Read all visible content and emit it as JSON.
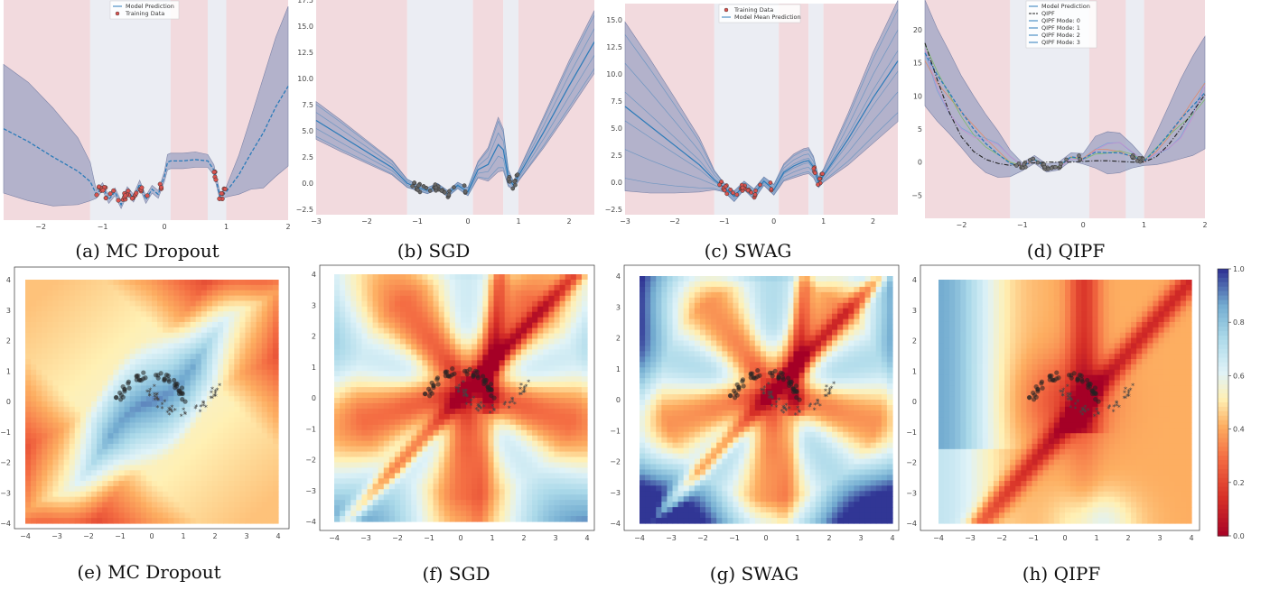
{
  "colors": {
    "ood_band": "#f2dade",
    "id_band": "#ebedf3",
    "uncertainty_fill": "#9ea4c4",
    "prediction_line": "#2b7bb9",
    "training_points": "#d9534f",
    "class0_points": "#222222",
    "class1_points": "#4a9a3a"
  },
  "top_row": [
    {
      "caption": "(a) MC Dropout",
      "x_ticks": [
        "−2",
        "−1",
        "0",
        "1",
        "2"
      ],
      "y_ticks": [],
      "legend": [
        "Model Prediction",
        "Training Data"
      ]
    },
    {
      "caption": "(b) SGD",
      "x_ticks": [
        "−3",
        "−2",
        "−1",
        "0",
        "1",
        "2"
      ],
      "y_ticks": [
        "17.5",
        "15.0",
        "12.5",
        "10.0",
        "7.5",
        "5.0",
        "2.5",
        "0.0",
        "−2.5"
      ],
      "legend": []
    },
    {
      "caption": "(c) SWAG",
      "x_ticks": [
        "−3",
        "−2",
        "−1",
        "0",
        "1",
        "2"
      ],
      "y_ticks": [
        "15.0",
        "12.5",
        "10.0",
        "7.5",
        "5.0",
        "2.5",
        "0.0",
        "−2.5"
      ],
      "legend": [
        "Training Data",
        "Model Mean Prediction"
      ]
    },
    {
      "caption": "(d) QIPF",
      "x_ticks": [
        "−2",
        "−1",
        "0",
        "1",
        "2"
      ],
      "y_ticks": [
        "20",
        "15",
        "10",
        "5",
        "0",
        "−5"
      ],
      "legend": [
        "Model Prediction",
        "QIPF",
        "QIPF Mode: 0",
        "QIPF Mode: 1",
        "QIPF Mode: 2",
        "QIPF Mode: 3"
      ]
    }
  ],
  "bottom_row": [
    {
      "caption": "(e) MC Dropout"
    },
    {
      "caption": "(f) SGD"
    },
    {
      "caption": "(g) SWAG"
    },
    {
      "caption": "(h) QIPF"
    }
  ],
  "grid_ticks": [
    "−4",
    "−3",
    "−2",
    "−1",
    "0",
    "1",
    "2",
    "3",
    "4"
  ],
  "colorbar": {
    "ticks": [
      "1.0",
      "0.8",
      "0.6",
      "0.4",
      "0.2",
      "0.0"
    ],
    "range": [
      0,
      1
    ],
    "colormap": "RdYlBu"
  },
  "chart_data": [
    {
      "type": "line",
      "panel": "a",
      "x_range": [
        -2.6,
        2
      ],
      "y_range": [
        -2.6,
        14.5
      ],
      "series": [
        {
          "name": "Model Prediction",
          "x": [
            -2.6,
            -2.2,
            -1.8,
            -1.4,
            -1.2,
            -1.1,
            -1.0,
            -0.9,
            -0.8,
            -0.7,
            -0.6,
            -0.5,
            -0.4,
            -0.3,
            -0.2,
            -0.1,
            0.0,
            0.05,
            0.1,
            0.3,
            0.5,
            0.7,
            0.8,
            0.9,
            0.95,
            1.0,
            1.2,
            1.4,
            1.6,
            1.8,
            2.0
          ],
          "y": [
            4.5,
            3.5,
            2.3,
            1.2,
            0.4,
            -0.6,
            0.0,
            -1.0,
            -0.4,
            -1.4,
            -0.3,
            -0.9,
            0.2,
            -1.0,
            -0.2,
            -0.6,
            0.8,
            1.9,
            2.0,
            2.0,
            2.1,
            2.0,
            1.3,
            -0.8,
            -0.6,
            -0.4,
            0.9,
            2.6,
            4.2,
            6.2,
            7.8
          ]
        },
        {
          "name": "Training Data",
          "x_range": [
            -1.15,
            1.0
          ]
        }
      ],
      "uncertainty_half_width": [
        5.0,
        4.6,
        3.8,
        2.6,
        1.5,
        0.3,
        0.3,
        0.3,
        0.3,
        0.3,
        0.3,
        0.3,
        0.3,
        0.3,
        0.3,
        0.3,
        0.4,
        0.6,
        0.6,
        0.6,
        0.6,
        0.5,
        0.4,
        0.3,
        0.3,
        0.4,
        1.5,
        2.8,
        4.3,
        5.4,
        6.2
      ]
    },
    {
      "type": "line",
      "panel": "b",
      "x_range": [
        -3,
        2.5
      ],
      "y_range": [
        -3,
        17.5
      ],
      "series": [
        {
          "name": "",
          "x": [
            -3,
            -2.5,
            -2,
            -1.5,
            -1.2,
            -1,
            -0.8,
            -0.6,
            -0.4,
            -0.2,
            0,
            0.2,
            0.4,
            0.6,
            0.7,
            0.8,
            0.9,
            1.0,
            1.5,
            2.0,
            2.5
          ],
          "y": [
            6,
            4.5,
            3,
            1.5,
            0,
            -0.4,
            -0.7,
            -0.3,
            -1,
            -0.2,
            -0.8,
            1.3,
            1.8,
            3.7,
            3.2,
            0.5,
            -0.2,
            0.7,
            4.9,
            9.3,
            13.5
          ]
        }
      ],
      "uncertainty_half_width": [
        1.8,
        1.5,
        1.1,
        0.7,
        0.4,
        0.3,
        0.3,
        0.3,
        0.3,
        0.3,
        0.4,
        0.8,
        1.6,
        2.6,
        2.0,
        0.8,
        0.4,
        0.5,
        1.5,
        2.4,
        3.0
      ]
    },
    {
      "type": "line",
      "panel": "c",
      "x_range": [
        -3,
        2.5
      ],
      "y_range": [
        -3,
        16.5
      ],
      "series": [
        {
          "name": "Model Mean Prediction",
          "x": [
            -3,
            -2.5,
            -2,
            -1.5,
            -1.2,
            -1,
            -0.8,
            -0.6,
            -0.4,
            -0.2,
            0,
            0.2,
            0.4,
            0.6,
            0.7,
            0.8,
            0.9,
            1.0,
            1.5,
            2.0,
            2.5
          ],
          "y": [
            7,
            5.2,
            3.4,
            1.6,
            0.2,
            -0.5,
            -1.3,
            -0.3,
            -1.1,
            0.1,
            -0.7,
            0.9,
            1.5,
            1.9,
            2.0,
            1.4,
            0.0,
            0.6,
            4.0,
            7.8,
            11.2
          ]
        },
        {
          "name": "Training Data",
          "x_range": [
            -1.15,
            1.0
          ]
        }
      ],
      "uncertainty_half_width": [
        7.8,
        6.2,
        4.4,
        2.5,
        0.9,
        0.4,
        0.5,
        0.4,
        0.5,
        0.4,
        0.5,
        0.8,
        1.1,
        1.2,
        1.2,
        1.0,
        0.5,
        0.6,
        2.4,
        4.2,
        5.6
      ]
    },
    {
      "type": "line",
      "panel": "d",
      "x_range": [
        -2.6,
        2
      ],
      "y_range": [
        -8.5,
        24.5
      ],
      "series": [
        {
          "name": "Model Prediction",
          "x": [
            -2.6,
            -2.4,
            -2.2,
            -2.0,
            -1.8,
            -1.6,
            -1.4,
            -1.2,
            -1.0,
            -0.8,
            -0.6,
            -0.4,
            -0.2,
            0.0,
            0.2,
            0.4,
            0.6,
            0.8,
            1.0,
            1.2,
            1.4,
            1.6,
            1.8,
            2.0
          ],
          "y": [
            16.5,
            13.2,
            10.5,
            7.6,
            5.0,
            2.8,
            1.2,
            -0.2,
            -0.7,
            0.4,
            -0.9,
            -0.6,
            0.8,
            0.5,
            1.5,
            1.4,
            1.4,
            0.9,
            0.1,
            2.0,
            4.2,
            6.5,
            8.5,
            10.5
          ]
        },
        {
          "name": "QIPF",
          "x": [
            -2.6,
            -2.4,
            -2.2,
            -2.0,
            -1.8,
            -1.6,
            -1.4,
            -1.2,
            -1.0,
            -0.8,
            -0.6,
            -0.4,
            -0.2,
            0.0,
            0.2,
            0.4,
            0.6,
            0.8,
            1.0,
            1.2,
            1.4,
            1.6,
            1.8,
            2.0
          ],
          "y": [
            18.0,
            12.5,
            7.5,
            3.8,
            1.6,
            0.4,
            -0.2,
            -0.5,
            -0.3,
            -0.1,
            0.0,
            0.0,
            0.0,
            0.1,
            0.2,
            0.2,
            0.1,
            0.0,
            0.0,
            0.8,
            2.6,
            5.0,
            7.6,
            10.2
          ]
        }
      ],
      "uncertainty_half_width": [
        8.0,
        7.0,
        6.2,
        5.4,
        5.0,
        4.4,
        3.5,
        2.0,
        0.6,
        0.6,
        0.6,
        0.6,
        0.6,
        0.8,
        2.4,
        3.2,
        3.0,
        1.8,
        0.6,
        2.4,
        4.2,
        6.0,
        7.5,
        8.5
      ]
    },
    {
      "type": "heatmap",
      "panel": "e",
      "title": "MC Dropout",
      "x_range": [
        -4,
        4
      ],
      "y_range": [
        -4,
        4
      ]
    },
    {
      "type": "heatmap",
      "panel": "f",
      "title": "SGD",
      "x_range": [
        -4,
        4
      ],
      "y_range": [
        -4,
        4
      ]
    },
    {
      "type": "heatmap",
      "panel": "g",
      "title": "SWAG",
      "x_range": [
        -4,
        4
      ],
      "y_range": [
        -4,
        4
      ]
    },
    {
      "type": "heatmap",
      "panel": "h",
      "title": "QIPF",
      "x_range": [
        -4,
        4
      ],
      "y_range": [
        -4,
        4
      ]
    }
  ]
}
